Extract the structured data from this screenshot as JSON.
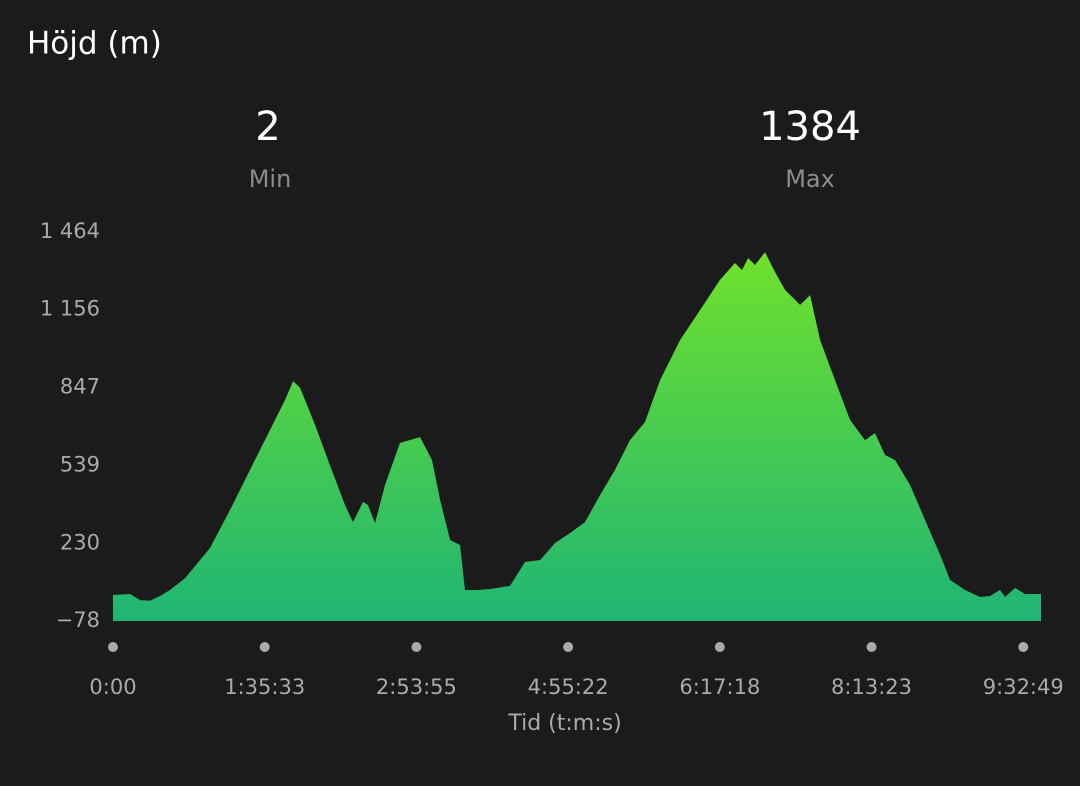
{
  "chart_data": {
    "type": "area",
    "title": "Höjd (m)",
    "stats": [
      {
        "value": 2,
        "label": "Min"
      },
      {
        "value": 1384,
        "label": "Max"
      }
    ],
    "x_label": "Tid (t:m:s)",
    "x": [
      0,
      0.112,
      0.178,
      0.244,
      0.31,
      0.376,
      0.475,
      0.574,
      0.639,
      0.771,
      0.903,
      1.035,
      1.134,
      1.187,
      1.233,
      1.332,
      1.43,
      1.529,
      1.582,
      1.648,
      1.681,
      1.727,
      1.793,
      1.892,
      2.024,
      2.103,
      2.156,
      2.222,
      2.288,
      2.32,
      2.406,
      2.485,
      2.617,
      2.716,
      2.815,
      2.914,
      3.013,
      3.111,
      3.21,
      3.309,
      3.408,
      3.507,
      3.606,
      3.738,
      3.87,
      4.001,
      4.1,
      4.146,
      4.186,
      4.232,
      4.298,
      4.364,
      4.43,
      4.529,
      4.595,
      4.661,
      4.759,
      4.858,
      4.957,
      5.023,
      5.089,
      5.155,
      5.254,
      5.353,
      5.452,
      5.518,
      5.616,
      5.715,
      5.781,
      5.847,
      5.88,
      5.946,
      6.012,
      6.078,
      6.117
    ],
    "values": [
      25,
      29,
      5,
      2,
      21,
      45,
      92,
      164,
      211,
      362,
      521,
      679,
      798,
      873,
      846,
      699,
      540,
      382,
      314,
      394,
      382,
      310,
      461,
      628,
      651,
      560,
      402,
      243,
      223,
      45,
      45,
      49,
      61,
      156,
      164,
      231,
      271,
      314,
      421,
      521,
      639,
      711,
      877,
      1036,
      1155,
      1274,
      1341,
      1313,
      1361,
      1333,
      1384,
      1305,
      1234,
      1175,
      1214,
      1036,
      877,
      719,
      639,
      667,
      580,
      560,
      461,
      322,
      184,
      85,
      45,
      17,
      21,
      45,
      17,
      53,
      29,
      29,
      29
    ],
    "color_top": "#6fe12c",
    "color_bottom": "#1fb574",
    "xlim": [
      0,
      6.117
    ],
    "xticks": [
      {
        "value": 0,
        "label": "0:00"
      },
      {
        "value": 1,
        "label": "1:35:33"
      },
      {
        "value": 2,
        "label": "2:53:55"
      },
      {
        "value": 3,
        "label": "4:55:22"
      },
      {
        "value": 4,
        "label": "6:17:18"
      },
      {
        "value": 5,
        "label": "8:13:23"
      },
      {
        "value": 6,
        "label": "9:32:49"
      }
    ],
    "ylim": [
      -78,
      1464
    ],
    "yticks": [
      {
        "value": -78,
        "label": "−78"
      },
      230,
      539,
      847,
      {
        "value": 1156,
        "label": "1 156"
      },
      {
        "value": 1464,
        "label": "1 464"
      }
    ]
  }
}
